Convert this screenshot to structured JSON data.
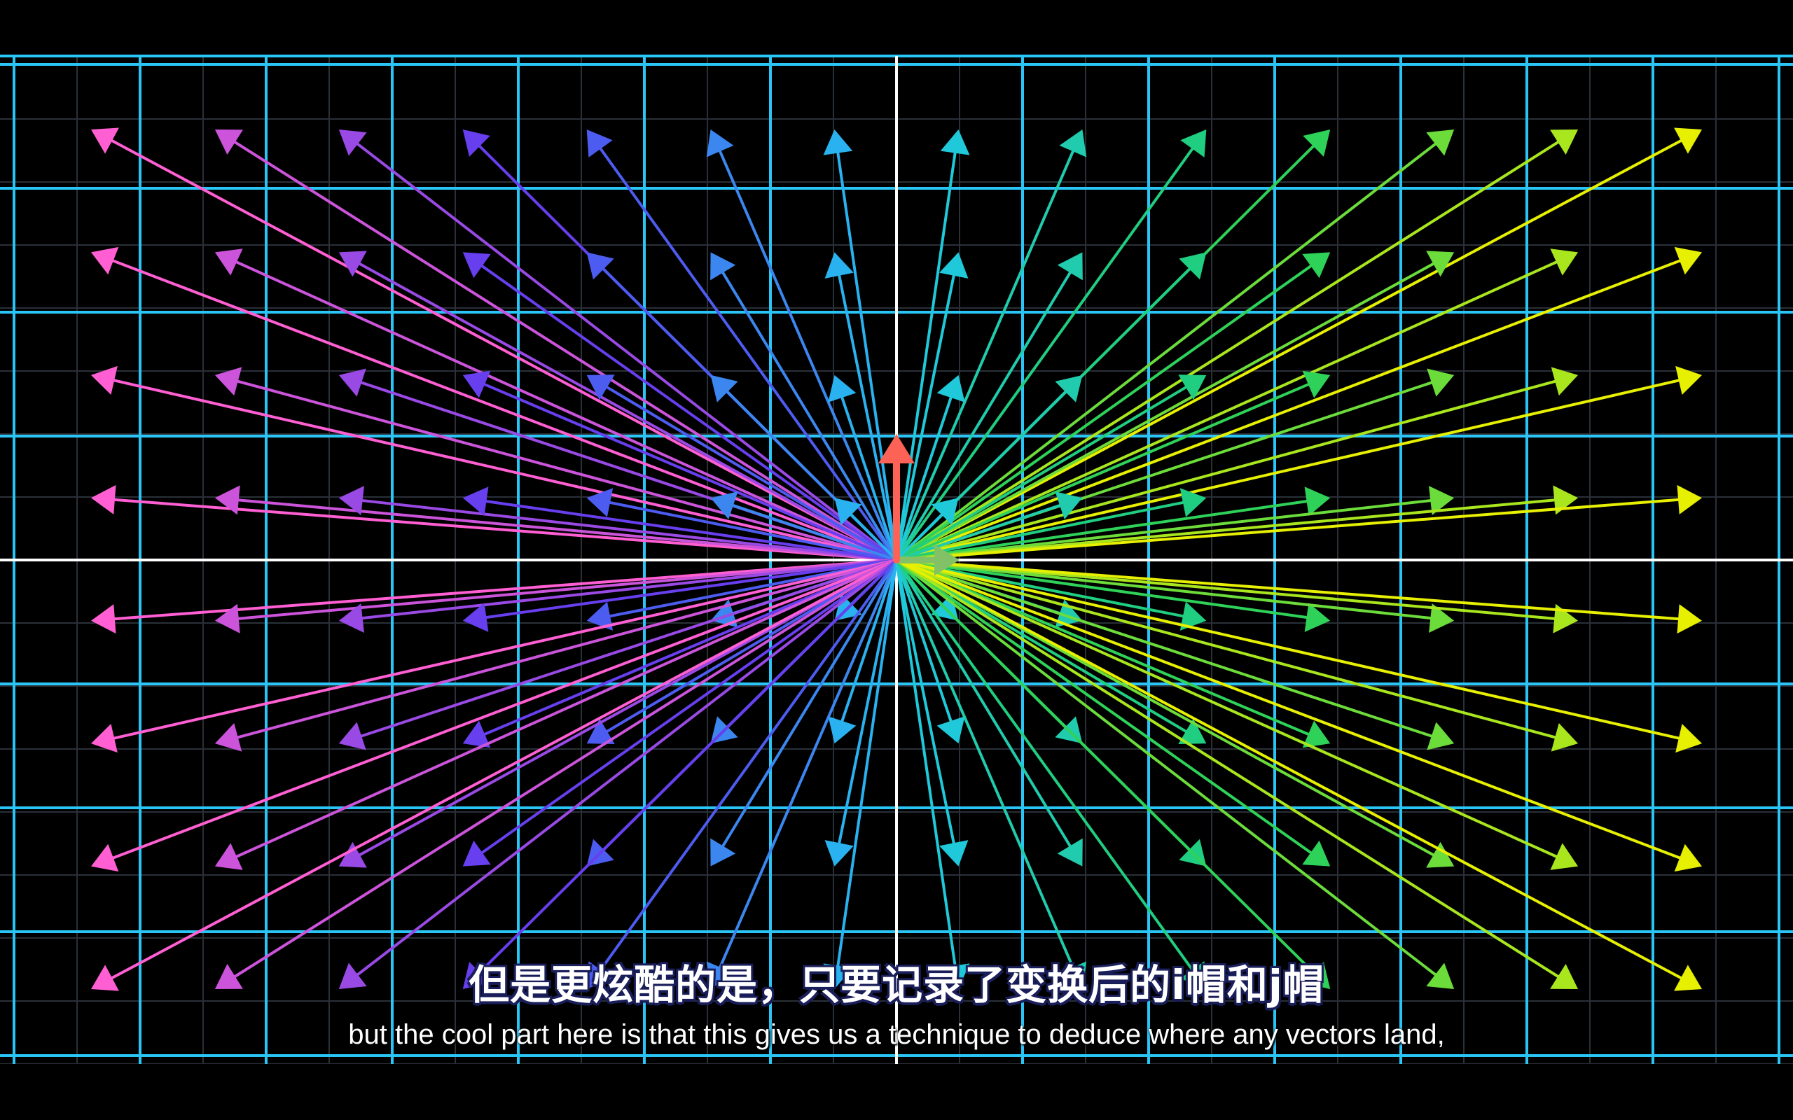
{
  "subtitles": {
    "zh": "但是更炫酷的是，只要记录了变换后的i帽和j帽",
    "en": "but the cool part here is that this gives us a technique to deduce where any vectors land,"
  },
  "colors": {
    "background": "#000000",
    "grid_line": "#29c5f6",
    "axis_line": "#ffffff",
    "i_hat": "#83c167",
    "j_hat": "#fc6255",
    "subtitle_outline": "#1a1f5a"
  },
  "vector_field": {
    "columns": 14,
    "rows": 8,
    "color_gradient": [
      "#ff5fd2",
      "#5a3cf0",
      "#20c8ef",
      "#20d060",
      "#e6f000"
    ]
  }
}
